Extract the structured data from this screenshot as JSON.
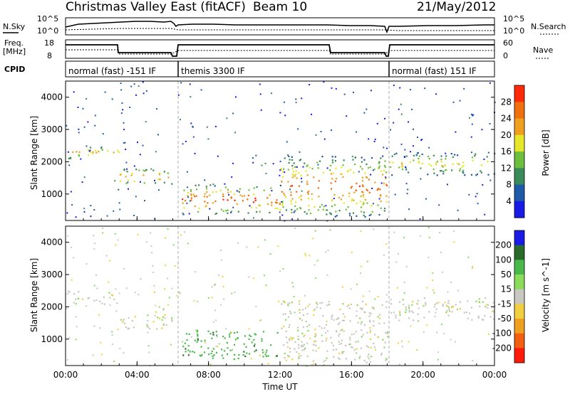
{
  "header": {
    "station": "Christmas Valley East (fitACF)",
    "beam": "Beam 10",
    "date": "21/May/2012"
  },
  "strip_labels": {
    "nsky": "N.Sky",
    "nsky_ticks": [
      "10^5",
      "10^0"
    ],
    "nsearch": "N.Search",
    "nsearch_ticks": [
      "10^5",
      "10^0"
    ],
    "freq": "Freq.",
    "freq_unit": "[MHz]",
    "freq_ticks": [
      "18",
      "8"
    ],
    "nave": "Nave",
    "nave_ticks": [
      "60",
      "0"
    ],
    "cpid": "CPID"
  },
  "cpid_segments": [
    {
      "label": "normal (fast) -151 IF",
      "start_hour": 0,
      "end_hour": 6.3
    },
    {
      "label": "themis 3300 IF",
      "start_hour": 6.3,
      "end_hour": 18.1
    },
    {
      "label": "normal (fast) 151 IF",
      "start_hour": 18.1,
      "end_hour": 24
    }
  ],
  "colors": {
    "power_scale": [
      "#1a1ae6",
      "#1e5aa8",
      "#3a8a5a",
      "#6fbf3f",
      "#e6e62a",
      "#f0a020",
      "#f07010",
      "#ff2a0a"
    ],
    "velocity_scale": [
      "#1a1ae6",
      "#2a6a2a",
      "#4ab84a",
      "#8adc5a",
      "#c8c8c0",
      "#f0d040",
      "#f0a020",
      "#f06010",
      "#ff1a0a"
    ]
  },
  "chart_data": [
    {
      "type": "heatmap",
      "title": "Power",
      "xlabel": "Time UT",
      "ylabel": "Slant Range [km]",
      "xlim": [
        0,
        24
      ],
      "ylim": [
        180,
        4500
      ],
      "x_ticks": [
        "00:00",
        "04:00",
        "08:00",
        "12:00",
        "16:00",
        "20:00",
        "00:00"
      ],
      "y_ticks": [
        1000,
        2000,
        3000,
        4000
      ],
      "colorbar_label": "Power [dB]",
      "colorbar_ticks": [
        4,
        8,
        12,
        16,
        20,
        24,
        28
      ],
      "scatter_bands": [
        {
          "start_hour": 0,
          "end_hour": 3,
          "range_km": [
            2100,
            2500
          ],
          "level_db": 20
        },
        {
          "start_hour": 3,
          "end_hour": 6,
          "range_km": [
            1300,
            1800
          ],
          "level_db": 22
        },
        {
          "start_hour": 6.5,
          "end_hour": 12,
          "range_km": [
            400,
            1300
          ],
          "level_db": 26
        },
        {
          "start_hour": 12,
          "end_hour": 18,
          "range_km": [
            300,
            2200
          ],
          "level_db": 24
        },
        {
          "start_hour": 18.1,
          "end_hour": 24,
          "range_km": [
            1600,
            2300
          ],
          "level_db": 18
        }
      ]
    },
    {
      "type": "heatmap",
      "title": "Velocity",
      "xlabel": "Time UT",
      "ylabel": "Slant Range [km]",
      "xlim": [
        0,
        24
      ],
      "ylim": [
        180,
        4500
      ],
      "x_ticks": [
        "00:00",
        "04:00",
        "08:00",
        "12:00",
        "16:00",
        "20:00",
        "00:00"
      ],
      "y_ticks": [
        1000,
        2000,
        3000,
        4000
      ],
      "colorbar_label": "Velocity [m s^-1]",
      "colorbar_ticks": [
        200,
        100,
        50,
        15,
        -15,
        -50,
        -100,
        -200
      ],
      "scatter_bands": [
        {
          "start_hour": 0,
          "end_hour": 3,
          "range_km": [
            2100,
            2500
          ],
          "velocity": 0
        },
        {
          "start_hour": 3,
          "end_hour": 6,
          "range_km": [
            1300,
            1800
          ],
          "velocity": 0
        },
        {
          "start_hour": 6.5,
          "end_hour": 12,
          "range_km": [
            400,
            1300
          ],
          "velocity": 60
        },
        {
          "start_hour": 12,
          "end_hour": 18,
          "range_km": [
            300,
            2200
          ],
          "velocity": 0
        },
        {
          "start_hour": 18.1,
          "end_hour": 24,
          "range_km": [
            1600,
            2300
          ],
          "velocity": 0
        }
      ]
    }
  ]
}
